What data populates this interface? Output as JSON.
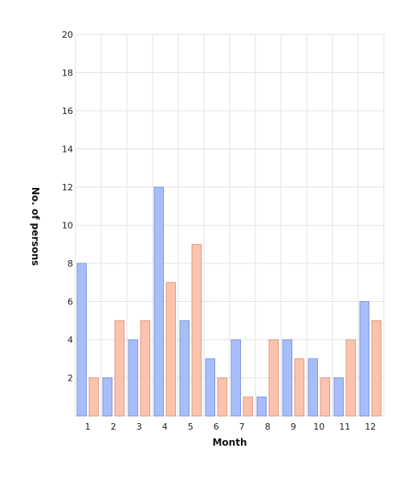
{
  "chart_data": {
    "type": "bar",
    "categories": [
      "1",
      "2",
      "3",
      "4",
      "5",
      "6",
      "7",
      "8",
      "9",
      "10",
      "11",
      "12"
    ],
    "series": [
      {
        "values": [
          8,
          2,
          4,
          12,
          5,
          3,
          4,
          1,
          4,
          3,
          2,
          6
        ],
        "color": "#a8befa",
        "stroke": "#6f88d9"
      },
      {
        "values": [
          2,
          5,
          5,
          7,
          9,
          2,
          1,
          4,
          3,
          2,
          4,
          5
        ],
        "color": "#fbc3ad",
        "stroke": "#d98c72"
      }
    ],
    "xlabel": "Month",
    "ylabel": "No. of persons",
    "ylim": [
      0,
      20
    ],
    "yticks": [
      2,
      4,
      6,
      8,
      10,
      12,
      14,
      16,
      18,
      20
    ],
    "grid": true,
    "legend": "none"
  }
}
